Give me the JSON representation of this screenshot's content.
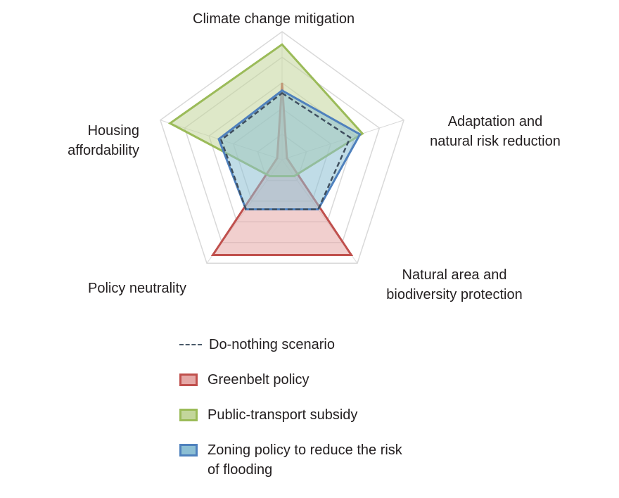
{
  "chart_data": {
    "type": "radar",
    "axes": [
      "Climate change mitigation",
      "Adaptation and natural risk reduction",
      "Natural area and biodiversity protection",
      "Policy neutrality",
      "Housing affordability"
    ],
    "rmax": 5,
    "grid_levels": 5,
    "grid": true,
    "legend_position": "bottom",
    "series": [
      {
        "name": "Do-nothing scenario",
        "style": "dashed",
        "color": "#3f4f5f",
        "values": [
          2.6,
          2.8,
          2.4,
          2.4,
          2.5
        ]
      },
      {
        "name": "Greenbelt policy",
        "color": "#c0504d",
        "fill": "#e5a8a6",
        "values": [
          3.0,
          0.2,
          4.6,
          4.6,
          0.2
        ]
      },
      {
        "name": "Public-transport subsidy",
        "color": "#9bbb59",
        "fill": "#c3d69b",
        "values": [
          4.5,
          3.3,
          0.8,
          0.8,
          4.6
        ]
      },
      {
        "name": "Zoning policy to reduce the risk\nof flooding",
        "color": "#4f81bd",
        "fill": "#8cbfd4",
        "values": [
          2.7,
          3.2,
          2.4,
          2.4,
          2.6
        ]
      }
    ]
  }
}
